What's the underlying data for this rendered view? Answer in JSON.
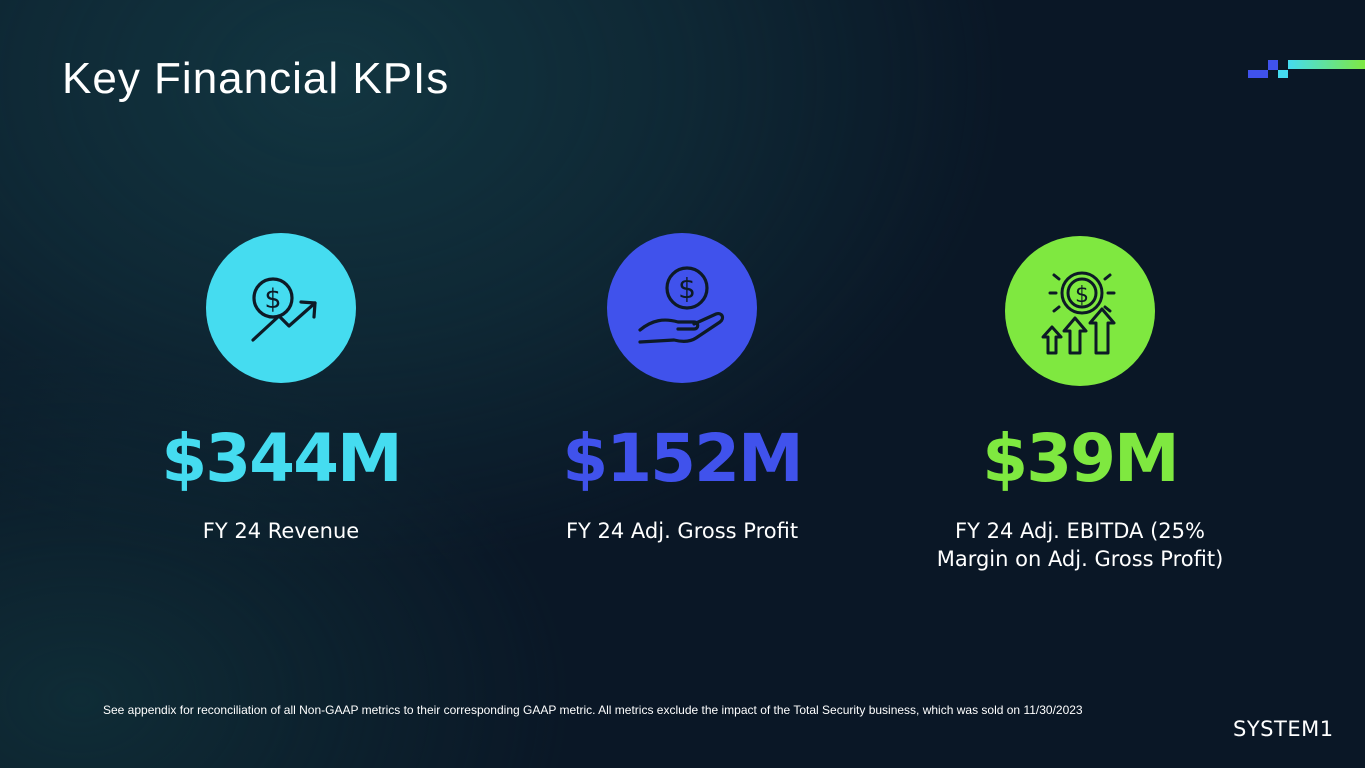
{
  "slide": {
    "title": "Key Financial KPIs",
    "footnote": "See appendix for reconciliation of all Non-GAAP metrics to their corresponding GAAP metric. All metrics exclude the impact of the Total Security business, which was sold on 11/30/2023",
    "logo_text": "SYSTEM1"
  },
  "kpis": [
    {
      "value": "$344M",
      "label": "FY 24 Revenue",
      "icon": "dollar-growth-arrow-icon",
      "color": "#45dcf0"
    },
    {
      "value": "$152M",
      "label": "FY 24 Adj. Gross Profit",
      "icon": "hand-holding-dollar-icon",
      "color": "#4052ec"
    },
    {
      "value": "$39M",
      "label_lines": [
        "FY 24 Adj. EBITDA (25%",
        "Margin on Adj. Gross Profit)"
      ],
      "icon": "dollar-coin-rising-arrows-icon",
      "color": "#7fe840"
    }
  ],
  "colors": {
    "background": "#0a1726",
    "accent_cyan": "#45dcf0",
    "accent_blue": "#4052ec",
    "accent_green": "#7fe840",
    "icon_stroke": "#0d1a26"
  }
}
